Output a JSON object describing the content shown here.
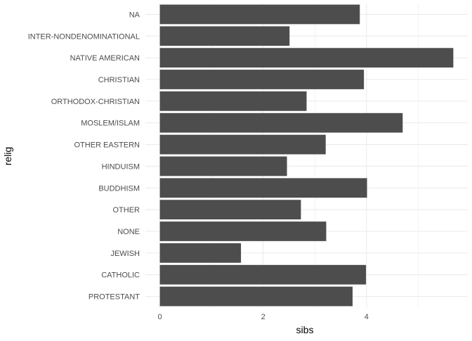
{
  "chart_data": {
    "type": "bar",
    "orientation": "horizontal",
    "title": "",
    "xlabel": "sibs",
    "ylabel": "relig",
    "categories": [
      "NA",
      "INTER-NONDENOMINATIONAL",
      "NATIVE AMERICAN",
      "CHRISTIAN",
      "ORTHODOX-CHRISTIAN",
      "MOSLEM/ISLAM",
      "OTHER EASTERN",
      "HINDUISM",
      "BUDDHISM",
      "OTHER",
      "NONE",
      "JEWISH",
      "CATHOLIC",
      "PROTESTANT"
    ],
    "values": [
      3.87,
      2.51,
      5.68,
      3.95,
      2.84,
      4.7,
      3.21,
      2.46,
      4.01,
      2.73,
      3.22,
      1.57,
      3.99,
      3.73
    ],
    "x_ticks": [
      0,
      2,
      4
    ],
    "xlim": [
      -0.28,
      5.96
    ],
    "grid": true,
    "legend": "none",
    "bar_color": "#4d4d4d",
    "grid_color": "#ebebeb",
    "text_color": "#4d4d4d",
    "axis_title_color": "#000000"
  }
}
